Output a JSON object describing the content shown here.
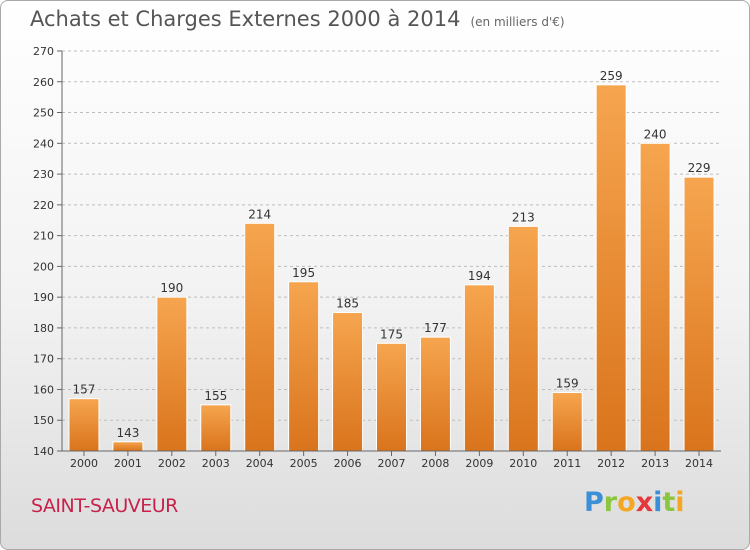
{
  "header": {
    "title": "Achats et Charges Externes 2000 à 2014",
    "unit": "(en milliers d'€)"
  },
  "footer": {
    "city": "SAINT-SAUVEUR",
    "brand": [
      "P",
      "r",
      "o",
      "x",
      "i",
      "t",
      "i"
    ],
    "brand_colors": [
      "#3b8fd6",
      "#8cc63f",
      "#f5a623",
      "#e8373a",
      "#3b8fd6",
      "#8cc63f",
      "#f5a623"
    ]
  },
  "colors": {
    "bar_top": "#f6a54f",
    "bar_bottom": "#d9741c",
    "bar_edge": "#ffffff"
  },
  "chart_data": {
    "type": "bar",
    "categories": [
      "2000",
      "2001",
      "2002",
      "2003",
      "2004",
      "2005",
      "2006",
      "2007",
      "2008",
      "2009",
      "2010",
      "2011",
      "2012",
      "2013",
      "2014"
    ],
    "values": [
      157,
      143,
      190,
      155,
      214,
      195,
      185,
      175,
      177,
      194,
      213,
      159,
      259,
      240,
      229
    ],
    "data_labels": [
      "157",
      "143",
      "190",
      "155",
      "214",
      "195",
      "185",
      "175",
      "177",
      "194",
      "213",
      "159",
      "259",
      "240",
      "229"
    ],
    "yticks": [
      "140",
      "150",
      "160",
      "170",
      "180",
      "190",
      "200",
      "210",
      "220",
      "230",
      "240",
      "250",
      "260",
      "270"
    ],
    "ylim": [
      140,
      270
    ],
    "grid": "horizontal dashed",
    "title": "Achats et Charges Externes 2000 à 2014",
    "ylabel": "",
    "xlabel": ""
  }
}
